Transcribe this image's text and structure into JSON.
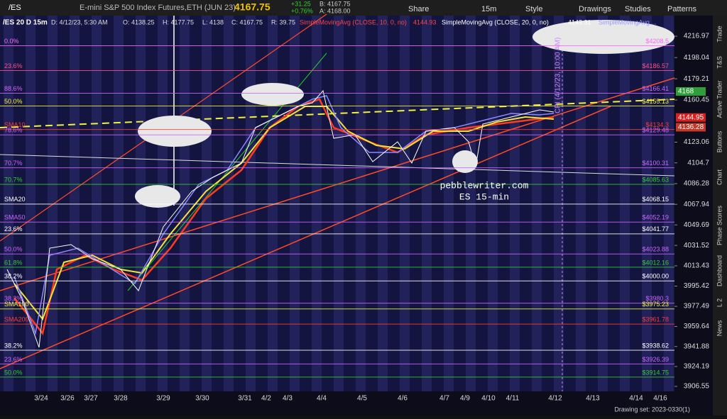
{
  "toolbar": {
    "symbol": "/ES",
    "title": "E-mini S&P 500 Index Futures,ETH (JUN 23)",
    "last": "4167.75",
    "change": "+31.25",
    "change_pct": "+0.76%",
    "bid": "B: 4167.75",
    "ask": "A: 4168.00",
    "buttons": [
      "Share",
      "15m",
      "Style",
      "Drawings",
      "Studies",
      "Patterns"
    ]
  },
  "info": {
    "symbol": "/ES 20 D 15m",
    "fields": [
      "D: 4/12/23, 5:30 AM",
      "O: 4138.25",
      "H: 4177.75",
      "L: 4138",
      "C: 4167.75",
      "R: 39.75"
    ],
    "sma10": "SimpleMovingAvg (CLOSE, 10, 0, no)",
    "sma10_value": "4144.93",
    "sma20": "SimpleMovingAvg (CLOSE, 20, 0, no)",
    "sma20_value": "4143.31",
    "sma_more": "SimpleMovingAvg ..."
  },
  "price_axis": {
    "range": [
      3897.1,
      4236.5
    ],
    "ticks": [
      4216.97,
      4198.04,
      4179.21,
      4160.45,
      4123.06,
      4104.7,
      4086.28,
      4067.94,
      4049.69,
      4031.52,
      4013.43,
      3995.42,
      3977.49,
      3959.64,
      3941.88,
      3924.19,
      3906.55
    ],
    "badges": [
      {
        "price": 4168,
        "label": "4168",
        "color": "#2e9e3a"
      },
      {
        "price": 4144.95,
        "label": "4144.95",
        "color": "#d42020"
      },
      {
        "price": 4136.28,
        "label": "4136.28",
        "color": "#c0392b"
      }
    ]
  },
  "levels": [
    {
      "price": 4208.5,
      "left": "0.0%",
      "right": "$4208.5",
      "color": "#ff66ff"
    },
    {
      "price": 4186.57,
      "left": "23.6%",
      "right": "$4186.57",
      "color": "#ff4d88"
    },
    {
      "price": 4166.41,
      "left": "88.6%",
      "right": "$4166.41",
      "color": "#cc66ff"
    },
    {
      "price": 4155.13,
      "left": "50.0%",
      "right": "$4155.13",
      "color": "#f2f23a"
    },
    {
      "price": 4134.3,
      "left": "SMA10",
      "right": "$4134.3",
      "color": "#ff3b3b"
    },
    {
      "price": 4129.48,
      "left": "78.6%",
      "right": "$4129.48",
      "color": "#cc66ff"
    },
    {
      "price": 4100.31,
      "left": "70.7%",
      "right": "$4100.31",
      "color": "#cc66ff"
    },
    {
      "price": 4085.63,
      "left": "70.7%",
      "right": "$4085.63",
      "color": "#33cc33"
    },
    {
      "price": 4068.15,
      "left": "SMA20",
      "right": "$4068.15",
      "color": "#ffffff"
    },
    {
      "price": 4052.19,
      "left": "SMA50",
      "right": "$4052.19",
      "color": "#cc66ff"
    },
    {
      "price": 4041.77,
      "left": "23.6%",
      "right": "$4041.77",
      "color": "#ffffff"
    },
    {
      "price": 4023.88,
      "left": "50.0%",
      "right": "$4023.88",
      "color": "#cc66ff"
    },
    {
      "price": 4012.16,
      "left": "61.8%",
      "right": "$4012.16",
      "color": "#33cc33"
    },
    {
      "price": 4000.0,
      "left": "38.2%",
      "right": "$4000.00",
      "color": "#ffffff"
    },
    {
      "price": 3980.3,
      "left": "38.2%",
      "right": "$3980.3",
      "color": "#cc66ff"
    },
    {
      "price": 3975.23,
      "left": "SMA100",
      "right": "$3975.23",
      "color": "#f2f23a"
    },
    {
      "price": 3961.78,
      "left": "SMA200",
      "right": "$3961.78",
      "color": "#ff3b3b"
    },
    {
      "price": 3938.62,
      "left": "38.2%",
      "right": "$3938.62",
      "color": "#ffffff"
    },
    {
      "price": 3926.39,
      "left": "23.6%",
      "right": "$3926.39",
      "color": "#cc66ff"
    },
    {
      "price": 3914.75,
      "left": "50.0%",
      "right": "$3914.75",
      "color": "#33cc33"
    }
  ],
  "dates": [
    "3/24",
    "3/26",
    "3/27",
    "3/28",
    "3/29",
    "3/30",
    "3/31",
    "4/2",
    "4/3",
    "4/4",
    "4/5",
    "4/6",
    "4/7",
    "4/9",
    "4/10",
    "4/11",
    "4/12",
    "4/13",
    "4/14",
    "4/16"
  ],
  "annotations": {
    "site": "pebblewriter.com",
    "timeframe": "ES 15-min",
    "event": "CPI (4/12/23, 10:00 AM)"
  },
  "side_tabs": [
    "Trade",
    "T&S",
    "Active Trader",
    "Buttons",
    "Chart",
    "Phase Scores",
    "Dashboard",
    "L 2",
    "News"
  ],
  "footer": "Drawing set: 2023-0330(1)"
}
